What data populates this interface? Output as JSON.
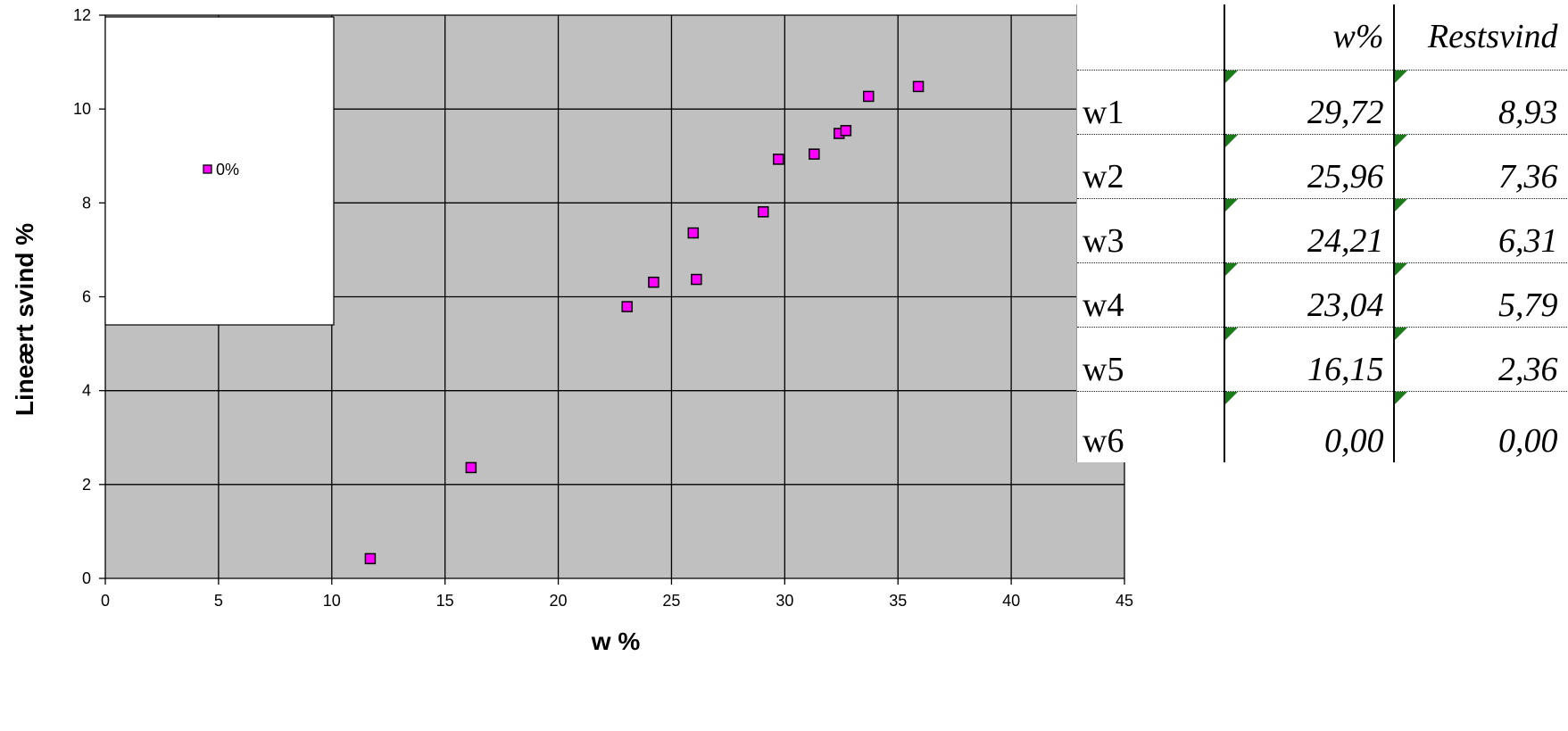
{
  "chart_data": {
    "type": "scatter",
    "xlabel": "w %",
    "ylabel": "Lineært svind %",
    "xlim": [
      0,
      45
    ],
    "ylim": [
      0,
      12
    ],
    "x_ticks": [
      0,
      5,
      10,
      15,
      20,
      25,
      30,
      35,
      40,
      45
    ],
    "y_ticks": [
      0,
      2,
      4,
      6,
      8,
      10,
      12
    ],
    "grid": true,
    "plot_background": "#c0c0c0",
    "marker_color": "#ff00ff",
    "legend": {
      "position": "top-left",
      "entries": [
        "0%"
      ]
    },
    "series": [
      {
        "name": "0%",
        "points": [
          {
            "x": 11.7,
            "y": 0.42
          },
          {
            "x": 16.15,
            "y": 2.36
          },
          {
            "x": 23.04,
            "y": 5.79
          },
          {
            "x": 24.21,
            "y": 6.31
          },
          {
            "x": 25.96,
            "y": 7.36
          },
          {
            "x": 26.1,
            "y": 6.37
          },
          {
            "x": 29.05,
            "y": 7.81
          },
          {
            "x": 29.72,
            "y": 8.93
          },
          {
            "x": 31.3,
            "y": 9.04
          },
          {
            "x": 32.4,
            "y": 9.48
          },
          {
            "x": 32.7,
            "y": 9.54
          },
          {
            "x": 33.7,
            "y": 10.27
          },
          {
            "x": 35.9,
            "y": 10.48
          }
        ]
      }
    ]
  },
  "table": {
    "headers": [
      "",
      "w%",
      "Restsvind"
    ],
    "rows": [
      {
        "label": "w1",
        "w": "29,72",
        "rest": "8,93"
      },
      {
        "label": "w2",
        "w": "25,96",
        "rest": "7,36"
      },
      {
        "label": "w3",
        "w": "24,21",
        "rest": "6,31"
      },
      {
        "label": "w4",
        "w": "23,04",
        "rest": "5,79"
      },
      {
        "label": "w5",
        "w": "16,15",
        "rest": "2,36"
      },
      {
        "label": "w6",
        "w": "0,00",
        "rest": "0,00"
      }
    ]
  }
}
